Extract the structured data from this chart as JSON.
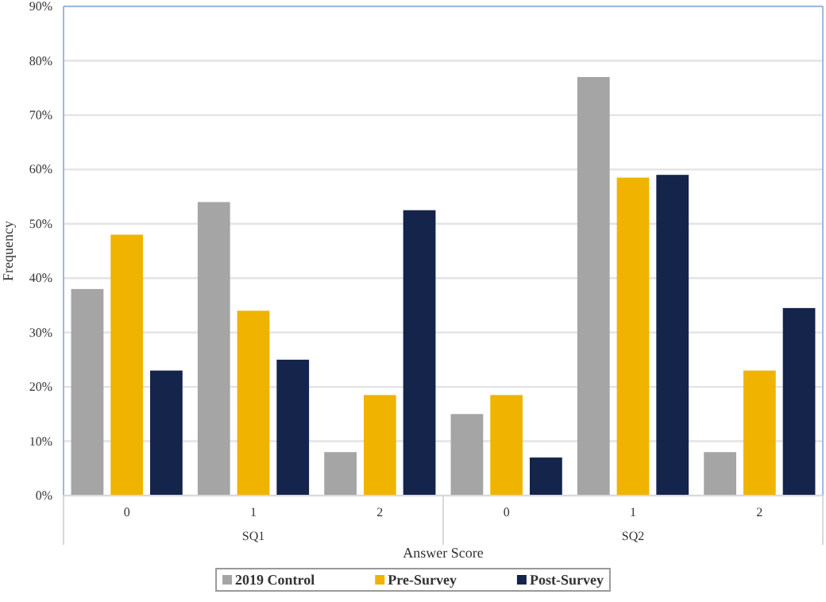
{
  "chart_data": {
    "type": "bar",
    "xlabel": "Answer Score",
    "ylabel": "Frequency",
    "categories": [
      "0",
      "1",
      "2",
      "0",
      "1",
      "2"
    ],
    "annotations": [
      "SQ1",
      "SQ2"
    ],
    "series": [
      {
        "name": "2019 Control",
        "color": "#a5a5a5",
        "values": [
          38,
          54,
          8,
          15,
          77,
          8
        ]
      },
      {
        "name": "Pre-Survey",
        "color": "#f0b400",
        "values": [
          48,
          34,
          18.5,
          18.5,
          58.5,
          23
        ]
      },
      {
        "name": "Post-Survey",
        "color": "#14244b",
        "values": [
          23,
          25,
          52.5,
          7,
          59,
          34.5
        ]
      }
    ],
    "ylim": [
      0,
      90
    ],
    "yticks": [
      {
        "value": 0,
        "label": "0%"
      },
      {
        "value": 10,
        "label": "10%"
      },
      {
        "value": 20,
        "label": "20%"
      },
      {
        "value": 30,
        "label": "30%"
      },
      {
        "value": 40,
        "label": "40%"
      },
      {
        "value": 50,
        "label": "50%"
      },
      {
        "value": 60,
        "label": "60%"
      },
      {
        "value": 70,
        "label": "70%"
      },
      {
        "value": 80,
        "label": "80%"
      },
      {
        "value": 90,
        "label": "90%"
      }
    ],
    "grid": "y",
    "legend": "bottom"
  }
}
